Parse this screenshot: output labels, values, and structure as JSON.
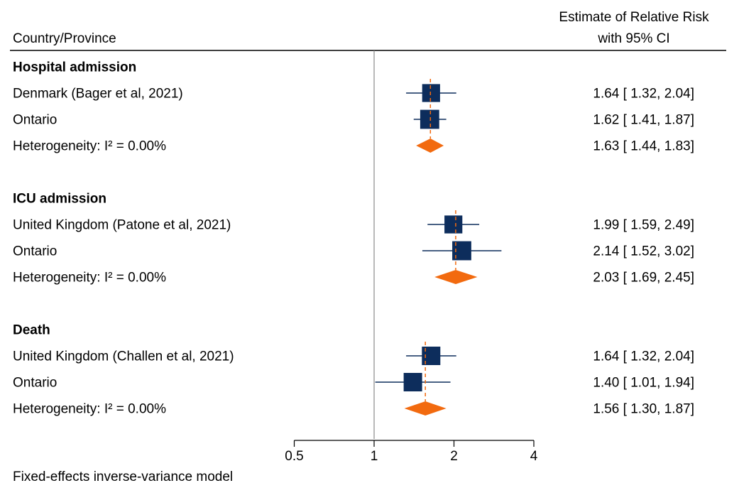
{
  "chart_data": {
    "type": "forest",
    "header": {
      "study_col": "Country/Province",
      "estimate_col_line1": "Estimate of Relative Risk",
      "estimate_col_line2": "with 95% CI"
    },
    "x_axis": {
      "scale": "log",
      "ticks": [
        {
          "value": 0.5,
          "label": "0.5"
        },
        {
          "value": 1,
          "label": "1"
        },
        {
          "value": 2,
          "label": "2"
        },
        {
          "value": 4,
          "label": "4"
        }
      ],
      "null_value": 1
    },
    "footnote": "Fixed-effects inverse-variance model",
    "groups": [
      {
        "label": "Hospital admission",
        "studies": [
          {
            "label": "Denmark (Bager et al, 2021)",
            "rr": 1.64,
            "lo": 1.32,
            "hi": 2.04,
            "text": "1.64 [ 1.32,  2.04]",
            "weight": 0.45
          },
          {
            "label": "Ontario",
            "rr": 1.62,
            "lo": 1.41,
            "hi": 1.87,
            "text": "1.62 [ 1.41,  1.87]",
            "weight": 0.55
          }
        ],
        "pooled": {
          "label": "Heterogeneity: I² = 0.00%",
          "rr": 1.63,
          "lo": 1.44,
          "hi": 1.83,
          "text": "1.63 [ 1.44,  1.83]"
        }
      },
      {
        "label": "ICU admission",
        "studies": [
          {
            "label": "United Kingdom (Patone et al, 2021)",
            "rr": 1.99,
            "lo": 1.59,
            "hi": 2.49,
            "text": "1.99 [ 1.59,  2.49]",
            "weight": 0.45
          },
          {
            "label": "Ontario",
            "rr": 2.14,
            "lo": 1.52,
            "hi": 3.02,
            "text": "2.14 [ 1.52,  3.02]",
            "weight": 0.55
          }
        ],
        "pooled": {
          "label": "Heterogeneity: I² = 0.00%",
          "rr": 2.03,
          "lo": 1.69,
          "hi": 2.45,
          "text": "2.03 [ 1.69,  2.45]"
        }
      },
      {
        "label": "Death",
        "studies": [
          {
            "label": "United Kingdom (Challen et al, 2021)",
            "rr": 1.64,
            "lo": 1.32,
            "hi": 2.04,
            "text": "1.64 [ 1.32,  2.04]",
            "weight": 0.5
          },
          {
            "label": "Ontario",
            "rr": 1.4,
            "lo": 1.01,
            "hi": 1.94,
            "text": "1.40 [ 1.01,  1.94]",
            "weight": 0.5
          }
        ],
        "pooled": {
          "label": "Heterogeneity: I² = 0.00%",
          "rr": 1.56,
          "lo": 1.3,
          "hi": 1.87,
          "text": "1.56 [ 1.30,  1.87]"
        }
      }
    ],
    "colors": {
      "marker": "#0d2d5c",
      "diamond": "#f26a0f",
      "pooled_line": "#f26a0f",
      "null_line": "#888888",
      "rule": "#000000"
    }
  }
}
